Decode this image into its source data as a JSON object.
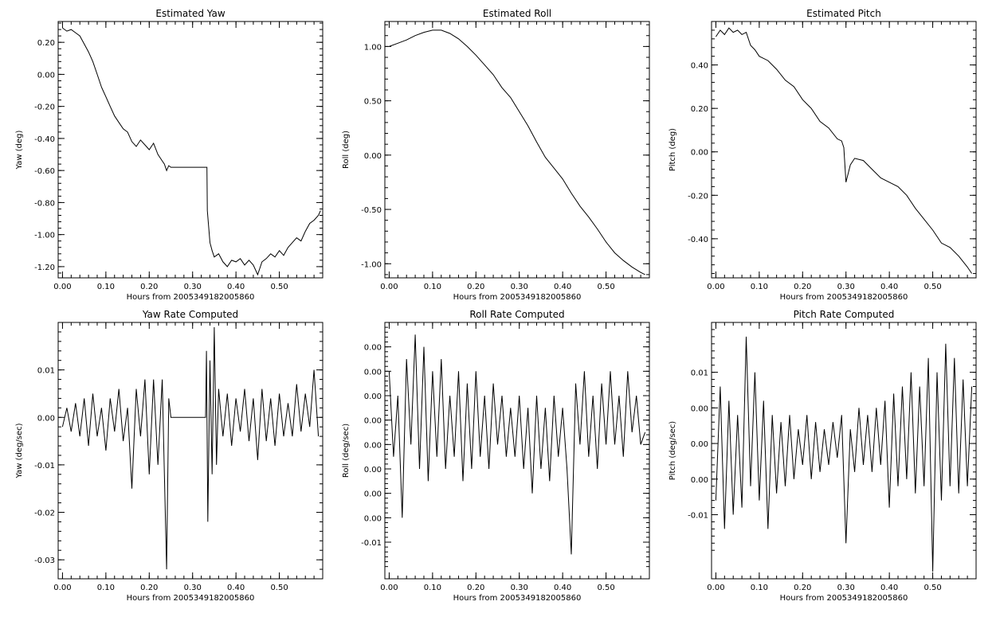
{
  "chart_data": [
    {
      "type": "line",
      "title": "Estimated Yaw",
      "xlabel": "Hours from 2005349182005860",
      "ylabel": "Yaw (deg)",
      "xlim": [
        -0.01,
        0.6
      ],
      "ylim": [
        -1.27,
        0.33
      ],
      "xticks": [
        0.0,
        0.1,
        0.2,
        0.3,
        0.4,
        0.5
      ],
      "xtick_labels": [
        "0.00",
        "0.10",
        "0.20",
        "0.30",
        "0.40",
        "0.50"
      ],
      "yticks": [
        -1.2,
        -1.0,
        -0.8,
        -0.6,
        -0.4,
        -0.2,
        0.0,
        0.2
      ],
      "ytick_labels": [
        "-1.20",
        "-1.00",
        "-0.80",
        "-0.60",
        "-0.40",
        "-0.20",
        "0.00",
        "0.20"
      ],
      "x": [
        0.0,
        0.01,
        0.02,
        0.03,
        0.04,
        0.05,
        0.06,
        0.07,
        0.08,
        0.09,
        0.1,
        0.11,
        0.12,
        0.13,
        0.14,
        0.15,
        0.16,
        0.17,
        0.18,
        0.19,
        0.2,
        0.21,
        0.22,
        0.23,
        0.235,
        0.24,
        0.245,
        0.25,
        0.3,
        0.333,
        0.334,
        0.34,
        0.345,
        0.35,
        0.36,
        0.37,
        0.38,
        0.39,
        0.4,
        0.41,
        0.42,
        0.43,
        0.44,
        0.45,
        0.46,
        0.47,
        0.48,
        0.49,
        0.5,
        0.51,
        0.52,
        0.53,
        0.54,
        0.55,
        0.56,
        0.57,
        0.58,
        0.59,
        0.595
      ],
      "y": [
        0.29,
        0.27,
        0.28,
        0.26,
        0.24,
        0.19,
        0.14,
        0.08,
        0.0,
        -0.08,
        -0.14,
        -0.2,
        -0.26,
        -0.3,
        -0.34,
        -0.36,
        -0.42,
        -0.45,
        -0.41,
        -0.44,
        -0.47,
        -0.43,
        -0.5,
        -0.54,
        -0.56,
        -0.6,
        -0.57,
        -0.58,
        -0.58,
        -0.58,
        -0.85,
        -1.05,
        -1.1,
        -1.14,
        -1.12,
        -1.17,
        -1.2,
        -1.16,
        -1.17,
        -1.15,
        -1.19,
        -1.16,
        -1.19,
        -1.25,
        -1.17,
        -1.15,
        -1.12,
        -1.14,
        -1.1,
        -1.13,
        -1.08,
        -1.05,
        -1.02,
        -1.04,
        -0.98,
        -0.93,
        -0.91,
        -0.88,
        -0.85
      ]
    },
    {
      "type": "line",
      "title": "Estimated Roll",
      "xlabel": "Hours from 2005349182005860",
      "ylabel": "Roll (deg)",
      "xlim": [
        -0.01,
        0.6
      ],
      "ylim": [
        -1.13,
        1.23
      ],
      "xticks": [
        0.0,
        0.1,
        0.2,
        0.3,
        0.4,
        0.5
      ],
      "xtick_labels": [
        "0.00",
        "0.10",
        "0.20",
        "0.30",
        "0.40",
        "0.50"
      ],
      "yticks": [
        -1.0,
        -0.5,
        0.0,
        0.5,
        1.0
      ],
      "ytick_labels": [
        "-1.00",
        "-0.50",
        "0.00",
        "0.50",
        "1.00"
      ],
      "x": [
        0.0,
        0.02,
        0.04,
        0.06,
        0.08,
        0.1,
        0.12,
        0.14,
        0.16,
        0.18,
        0.2,
        0.22,
        0.24,
        0.26,
        0.28,
        0.3,
        0.32,
        0.34,
        0.36,
        0.38,
        0.4,
        0.42,
        0.44,
        0.46,
        0.48,
        0.5,
        0.52,
        0.54,
        0.56,
        0.58,
        0.59
      ],
      "y": [
        1.0,
        1.03,
        1.06,
        1.1,
        1.13,
        1.15,
        1.15,
        1.12,
        1.07,
        1.0,
        0.92,
        0.83,
        0.74,
        0.62,
        0.53,
        0.4,
        0.27,
        0.12,
        -0.02,
        -0.12,
        -0.22,
        -0.35,
        -0.47,
        -0.57,
        -0.68,
        -0.8,
        -0.9,
        -0.97,
        -1.03,
        -1.08,
        -1.1
      ]
    },
    {
      "type": "line",
      "title": "Estimated Pitch",
      "xlabel": "Hours from 2005349182005860",
      "ylabel": "Pitch (deg)",
      "xlim": [
        -0.01,
        0.6
      ],
      "ylim": [
        -0.58,
        0.6
      ],
      "xticks": [
        0.0,
        0.1,
        0.2,
        0.3,
        0.4,
        0.5
      ],
      "xtick_labels": [
        "0.00",
        "0.10",
        "0.20",
        "0.30",
        "0.40",
        "0.50"
      ],
      "yticks": [
        -0.4,
        -0.2,
        0.0,
        0.2,
        0.4
      ],
      "ytick_labels": [
        "-0.40",
        "-0.20",
        "0.00",
        "0.20",
        "0.40"
      ],
      "x": [
        0.0,
        0.01,
        0.02,
        0.03,
        0.04,
        0.05,
        0.06,
        0.07,
        0.08,
        0.09,
        0.1,
        0.12,
        0.14,
        0.16,
        0.18,
        0.2,
        0.22,
        0.24,
        0.26,
        0.28,
        0.29,
        0.295,
        0.3,
        0.31,
        0.32,
        0.34,
        0.36,
        0.38,
        0.4,
        0.42,
        0.44,
        0.46,
        0.48,
        0.5,
        0.52,
        0.54,
        0.56,
        0.58,
        0.59
      ],
      "y": [
        0.53,
        0.56,
        0.54,
        0.57,
        0.55,
        0.56,
        0.54,
        0.55,
        0.49,
        0.47,
        0.44,
        0.42,
        0.38,
        0.33,
        0.3,
        0.24,
        0.2,
        0.14,
        0.11,
        0.06,
        0.05,
        0.02,
        -0.14,
        -0.06,
        -0.03,
        -0.04,
        -0.08,
        -0.12,
        -0.14,
        -0.16,
        -0.2,
        -0.26,
        -0.31,
        -0.36,
        -0.42,
        -0.44,
        -0.48,
        -0.53,
        -0.56
      ]
    },
    {
      "type": "line",
      "title": "Yaw Rate Computed",
      "xlabel": "Hours from 2005349182005860",
      "ylabel": "Yaw (deg/sec)",
      "xlim": [
        -0.01,
        0.6
      ],
      "ylim": [
        -0.034,
        0.02
      ],
      "xticks": [
        0.0,
        0.1,
        0.2,
        0.3,
        0.4,
        0.5
      ],
      "xtick_labels": [
        "0.00",
        "0.10",
        "0.20",
        "0.30",
        "0.40",
        "0.50"
      ],
      "yticks": [
        -0.03,
        -0.02,
        -0.01,
        0.0,
        0.01
      ],
      "ytick_labels": [
        "-0.03",
        "-0.02",
        "-0.01",
        "0.00",
        "0.01"
      ],
      "x": [
        0.0,
        0.01,
        0.02,
        0.03,
        0.04,
        0.05,
        0.06,
        0.07,
        0.08,
        0.09,
        0.1,
        0.11,
        0.12,
        0.13,
        0.14,
        0.15,
        0.16,
        0.17,
        0.18,
        0.19,
        0.2,
        0.21,
        0.22,
        0.23,
        0.235,
        0.24,
        0.245,
        0.25,
        0.3,
        0.33,
        0.332,
        0.335,
        0.34,
        0.345,
        0.35,
        0.355,
        0.36,
        0.37,
        0.38,
        0.39,
        0.4,
        0.41,
        0.42,
        0.43,
        0.44,
        0.45,
        0.46,
        0.47,
        0.48,
        0.49,
        0.5,
        0.51,
        0.52,
        0.53,
        0.54,
        0.55,
        0.56,
        0.57,
        0.58,
        0.59
      ],
      "y": [
        -0.002,
        0.002,
        -0.003,
        0.003,
        -0.004,
        0.004,
        -0.006,
        0.005,
        -0.004,
        0.002,
        -0.007,
        0.004,
        -0.003,
        0.006,
        -0.005,
        0.002,
        -0.015,
        0.006,
        -0.004,
        0.008,
        -0.012,
        0.008,
        -0.01,
        0.008,
        -0.012,
        -0.032,
        0.004,
        0.0,
        0.0,
        0.0,
        0.014,
        -0.022,
        0.012,
        -0.012,
        0.019,
        -0.01,
        0.006,
        -0.004,
        0.005,
        -0.006,
        0.004,
        -0.003,
        0.006,
        -0.005,
        0.004,
        -0.009,
        0.006,
        -0.005,
        0.004,
        -0.006,
        0.005,
        -0.004,
        0.003,
        -0.004,
        0.007,
        -0.003,
        0.005,
        -0.002,
        0.01,
        -0.004
      ]
    },
    {
      "type": "line",
      "title": "Roll Rate Computed",
      "xlabel": "Hours from 2005349182005860",
      "ylabel": "Roll (deg/sec)",
      "xlim": [
        -0.01,
        0.6
      ],
      "ylim": [
        -0.013,
        0.008
      ],
      "xticks": [
        0.0,
        0.1,
        0.2,
        0.3,
        0.4,
        0.5
      ],
      "xtick_labels": [
        "0.00",
        "0.10",
        "0.20",
        "0.30",
        "0.40",
        "0.50"
      ],
      "yticks": [
        -0.01,
        -0.008,
        -0.006,
        -0.004,
        -0.002,
        0.0,
        0.002,
        0.004,
        0.006
      ],
      "ytick_labels": [
        "-0.01",
        "0.00",
        "0.00",
        "0.00",
        "0.00",
        "0.00",
        "0.00",
        "0.00",
        "0.00"
      ],
      "x": [
        0.0,
        0.01,
        0.02,
        0.03,
        0.04,
        0.05,
        0.06,
        0.07,
        0.08,
        0.09,
        0.1,
        0.11,
        0.12,
        0.13,
        0.14,
        0.15,
        0.16,
        0.17,
        0.18,
        0.19,
        0.2,
        0.21,
        0.22,
        0.23,
        0.24,
        0.25,
        0.26,
        0.27,
        0.28,
        0.29,
        0.3,
        0.31,
        0.32,
        0.33,
        0.34,
        0.35,
        0.36,
        0.37,
        0.38,
        0.39,
        0.4,
        0.41,
        0.42,
        0.43,
        0.44,
        0.45,
        0.46,
        0.47,
        0.48,
        0.49,
        0.5,
        0.51,
        0.52,
        0.53,
        0.54,
        0.55,
        0.56,
        0.57,
        0.58,
        0.59
      ],
      "y": [
        0.004,
        -0.003,
        0.002,
        -0.008,
        0.005,
        -0.002,
        0.007,
        -0.004,
        0.006,
        -0.005,
        0.004,
        -0.003,
        0.005,
        -0.004,
        0.002,
        -0.003,
        0.004,
        -0.005,
        0.003,
        -0.004,
        0.004,
        -0.003,
        0.002,
        -0.004,
        0.003,
        -0.002,
        0.002,
        -0.003,
        0.001,
        -0.003,
        0.002,
        -0.004,
        0.001,
        -0.006,
        0.002,
        -0.004,
        0.001,
        -0.005,
        0.002,
        -0.003,
        0.001,
        -0.004,
        -0.011,
        0.003,
        -0.002,
        0.004,
        -0.003,
        0.002,
        -0.004,
        0.003,
        -0.002,
        0.004,
        -0.002,
        0.002,
        -0.003,
        0.004,
        -0.001,
        0.002,
        -0.002,
        -0.001
      ]
    },
    {
      "type": "line",
      "title": "Pitch Rate Computed",
      "xlabel": "Hours from 2005349182005860",
      "ylabel": "Pitch (deg/sec)",
      "xlim": [
        -0.01,
        0.6
      ],
      "ylim": [
        -0.019,
        0.017
      ],
      "xticks": [
        0.0,
        0.1,
        0.2,
        0.3,
        0.4,
        0.5
      ],
      "xtick_labels": [
        "0.00",
        "0.10",
        "0.20",
        "0.30",
        "0.40",
        "0.50"
      ],
      "yticks": [
        -0.01,
        -0.005,
        0.0,
        0.005,
        0.01
      ],
      "ytick_labels": [
        "-0.01",
        "0.00",
        "0.00",
        "0.00",
        "0.01"
      ],
      "x": [
        0.0,
        0.01,
        0.02,
        0.03,
        0.04,
        0.05,
        0.06,
        0.07,
        0.08,
        0.09,
        0.1,
        0.11,
        0.12,
        0.13,
        0.14,
        0.15,
        0.16,
        0.17,
        0.18,
        0.19,
        0.2,
        0.21,
        0.22,
        0.23,
        0.24,
        0.25,
        0.26,
        0.27,
        0.28,
        0.29,
        0.3,
        0.31,
        0.32,
        0.33,
        0.34,
        0.35,
        0.36,
        0.37,
        0.38,
        0.39,
        0.4,
        0.41,
        0.42,
        0.43,
        0.44,
        0.45,
        0.46,
        0.47,
        0.48,
        0.49,
        0.5,
        0.51,
        0.52,
        0.53,
        0.54,
        0.55,
        0.56,
        0.57,
        0.58,
        0.59
      ],
      "y": [
        -0.008,
        0.008,
        -0.012,
        0.006,
        -0.01,
        0.004,
        -0.009,
        0.015,
        -0.006,
        0.01,
        -0.008,
        0.006,
        -0.012,
        0.004,
        -0.007,
        0.003,
        -0.006,
        0.004,
        -0.005,
        0.002,
        -0.003,
        0.004,
        -0.005,
        0.003,
        -0.004,
        0.002,
        -0.003,
        0.003,
        -0.002,
        0.004,
        -0.014,
        0.002,
        -0.004,
        0.005,
        -0.003,
        0.004,
        -0.004,
        0.005,
        -0.003,
        0.006,
        -0.009,
        0.007,
        -0.006,
        0.008,
        -0.005,
        0.01,
        -0.007,
        0.008,
        -0.006,
        0.012,
        -0.018,
        0.01,
        -0.008,
        0.014,
        -0.006,
        0.012,
        -0.007,
        0.009,
        -0.006,
        0.008
      ]
    }
  ]
}
